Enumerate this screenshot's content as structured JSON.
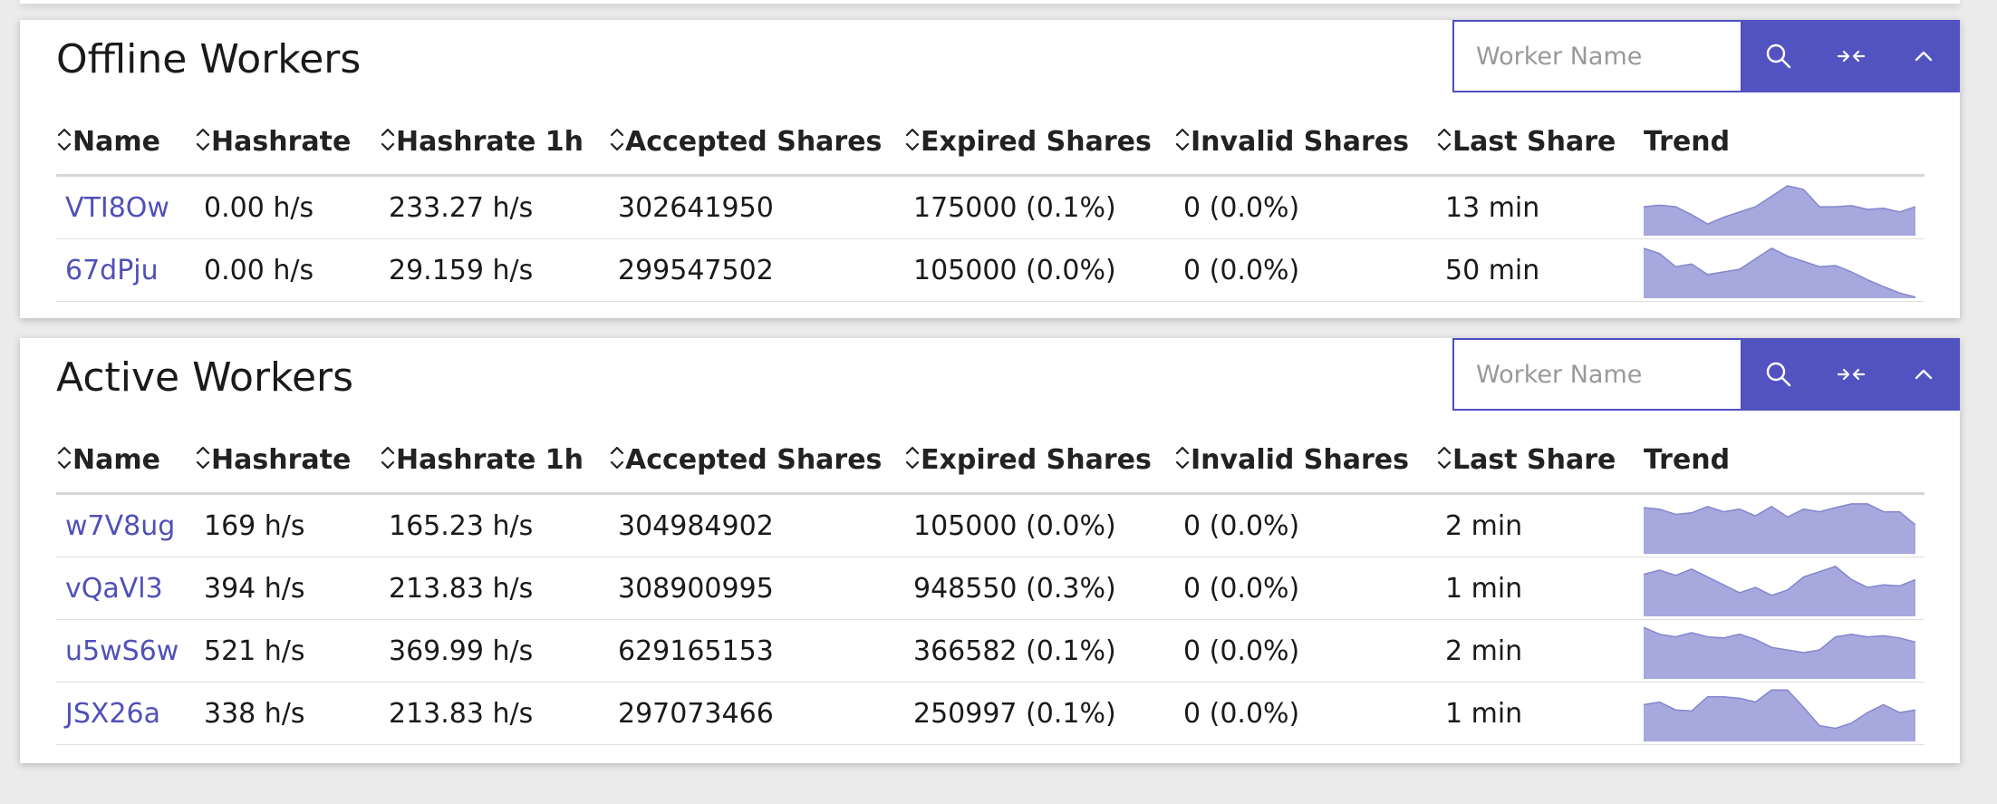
{
  "search_placeholder": "Worker Name",
  "columns": [
    "Name",
    "Hashrate",
    "Hashrate 1h",
    "Accepted Shares",
    "Expired Shares",
    "Invalid Shares",
    "Last Share",
    "Trend"
  ],
  "offline": {
    "title": "Offline Workers",
    "rows": [
      {
        "name": "VTI8Ow",
        "hashrate": "0.00 h/s",
        "hashrate_1h": "233.27 h/s",
        "accepted": "302641950",
        "expired": "175000 (0.1%)",
        "invalid": "0 (0.0%)",
        "last_share": "13 min",
        "trend": [
          0.55,
          0.58,
          0.55,
          0.4,
          0.22,
          0.35,
          0.45,
          0.55,
          0.75,
          0.95,
          0.88,
          0.55,
          0.55,
          0.57,
          0.5,
          0.52,
          0.45,
          0.55
        ]
      },
      {
        "name": "67dPju",
        "hashrate": "0.00 h/s",
        "hashrate_1h": "29.159 h/s",
        "accepted": "299547502",
        "expired": "105000 (0.0%)",
        "invalid": "0 (0.0%)",
        "last_share": "50 min",
        "trend": [
          0.95,
          0.85,
          0.6,
          0.65,
          0.45,
          0.5,
          0.55,
          0.75,
          0.95,
          0.8,
          0.7,
          0.6,
          0.62,
          0.5,
          0.35,
          0.22,
          0.1,
          0.02
        ]
      }
    ]
  },
  "active": {
    "title": "Active Workers",
    "rows": [
      {
        "name": "w7V8ug",
        "hashrate": "169 h/s",
        "hashrate_1h": "165.23 h/s",
        "accepted": "304984902",
        "expired": "105000 (0.0%)",
        "invalid": "0 (0.0%)",
        "last_share": "2 min",
        "trend": [
          0.88,
          0.85,
          0.75,
          0.78,
          0.9,
          0.8,
          0.85,
          0.72,
          0.9,
          0.7,
          0.85,
          0.8,
          0.88,
          0.95,
          0.95,
          0.8,
          0.8,
          0.55
        ]
      },
      {
        "name": "vQaVl3",
        "hashrate": "394 h/s",
        "hashrate_1h": "213.83 h/s",
        "accepted": "308900995",
        "expired": "948550 (0.3%)",
        "invalid": "0 (0.0%)",
        "last_share": "1 min",
        "trend": [
          0.8,
          0.88,
          0.78,
          0.9,
          0.75,
          0.6,
          0.45,
          0.55,
          0.4,
          0.5,
          0.75,
          0.85,
          0.95,
          0.7,
          0.55,
          0.6,
          0.58,
          0.7
        ]
      },
      {
        "name": "u5wS6w",
        "hashrate": "521 h/s",
        "hashrate_1h": "369.99 h/s",
        "accepted": "629165153",
        "expired": "366582 (0.1%)",
        "invalid": "0 (0.0%)",
        "last_share": "2 min",
        "trend": [
          0.98,
          0.85,
          0.8,
          0.88,
          0.8,
          0.78,
          0.85,
          0.75,
          0.6,
          0.55,
          0.5,
          0.55,
          0.8,
          0.85,
          0.8,
          0.82,
          0.78,
          0.7
        ]
      },
      {
        "name": "JSX26a",
        "hashrate": "338 h/s",
        "hashrate_1h": "213.83 h/s",
        "accepted": "297073466",
        "expired": "250997 (0.1%)",
        "invalid": "0 (0.0%)",
        "last_share": "1 min",
        "trend": [
          0.7,
          0.75,
          0.6,
          0.58,
          0.85,
          0.85,
          0.82,
          0.75,
          0.98,
          0.98,
          0.65,
          0.3,
          0.25,
          0.35,
          0.55,
          0.7,
          0.55,
          0.6
        ]
      }
    ]
  },
  "colors": {
    "accent": "#5252c1",
    "link": "#5050b8",
    "trend_fill": "#a7a8dd",
    "trend_stroke": "#8486cf"
  },
  "icons": {
    "search": "search-icon",
    "collapse": "collapse-columns-icon",
    "toggle": "chevron-up-icon",
    "sort": "sort-icon"
  }
}
